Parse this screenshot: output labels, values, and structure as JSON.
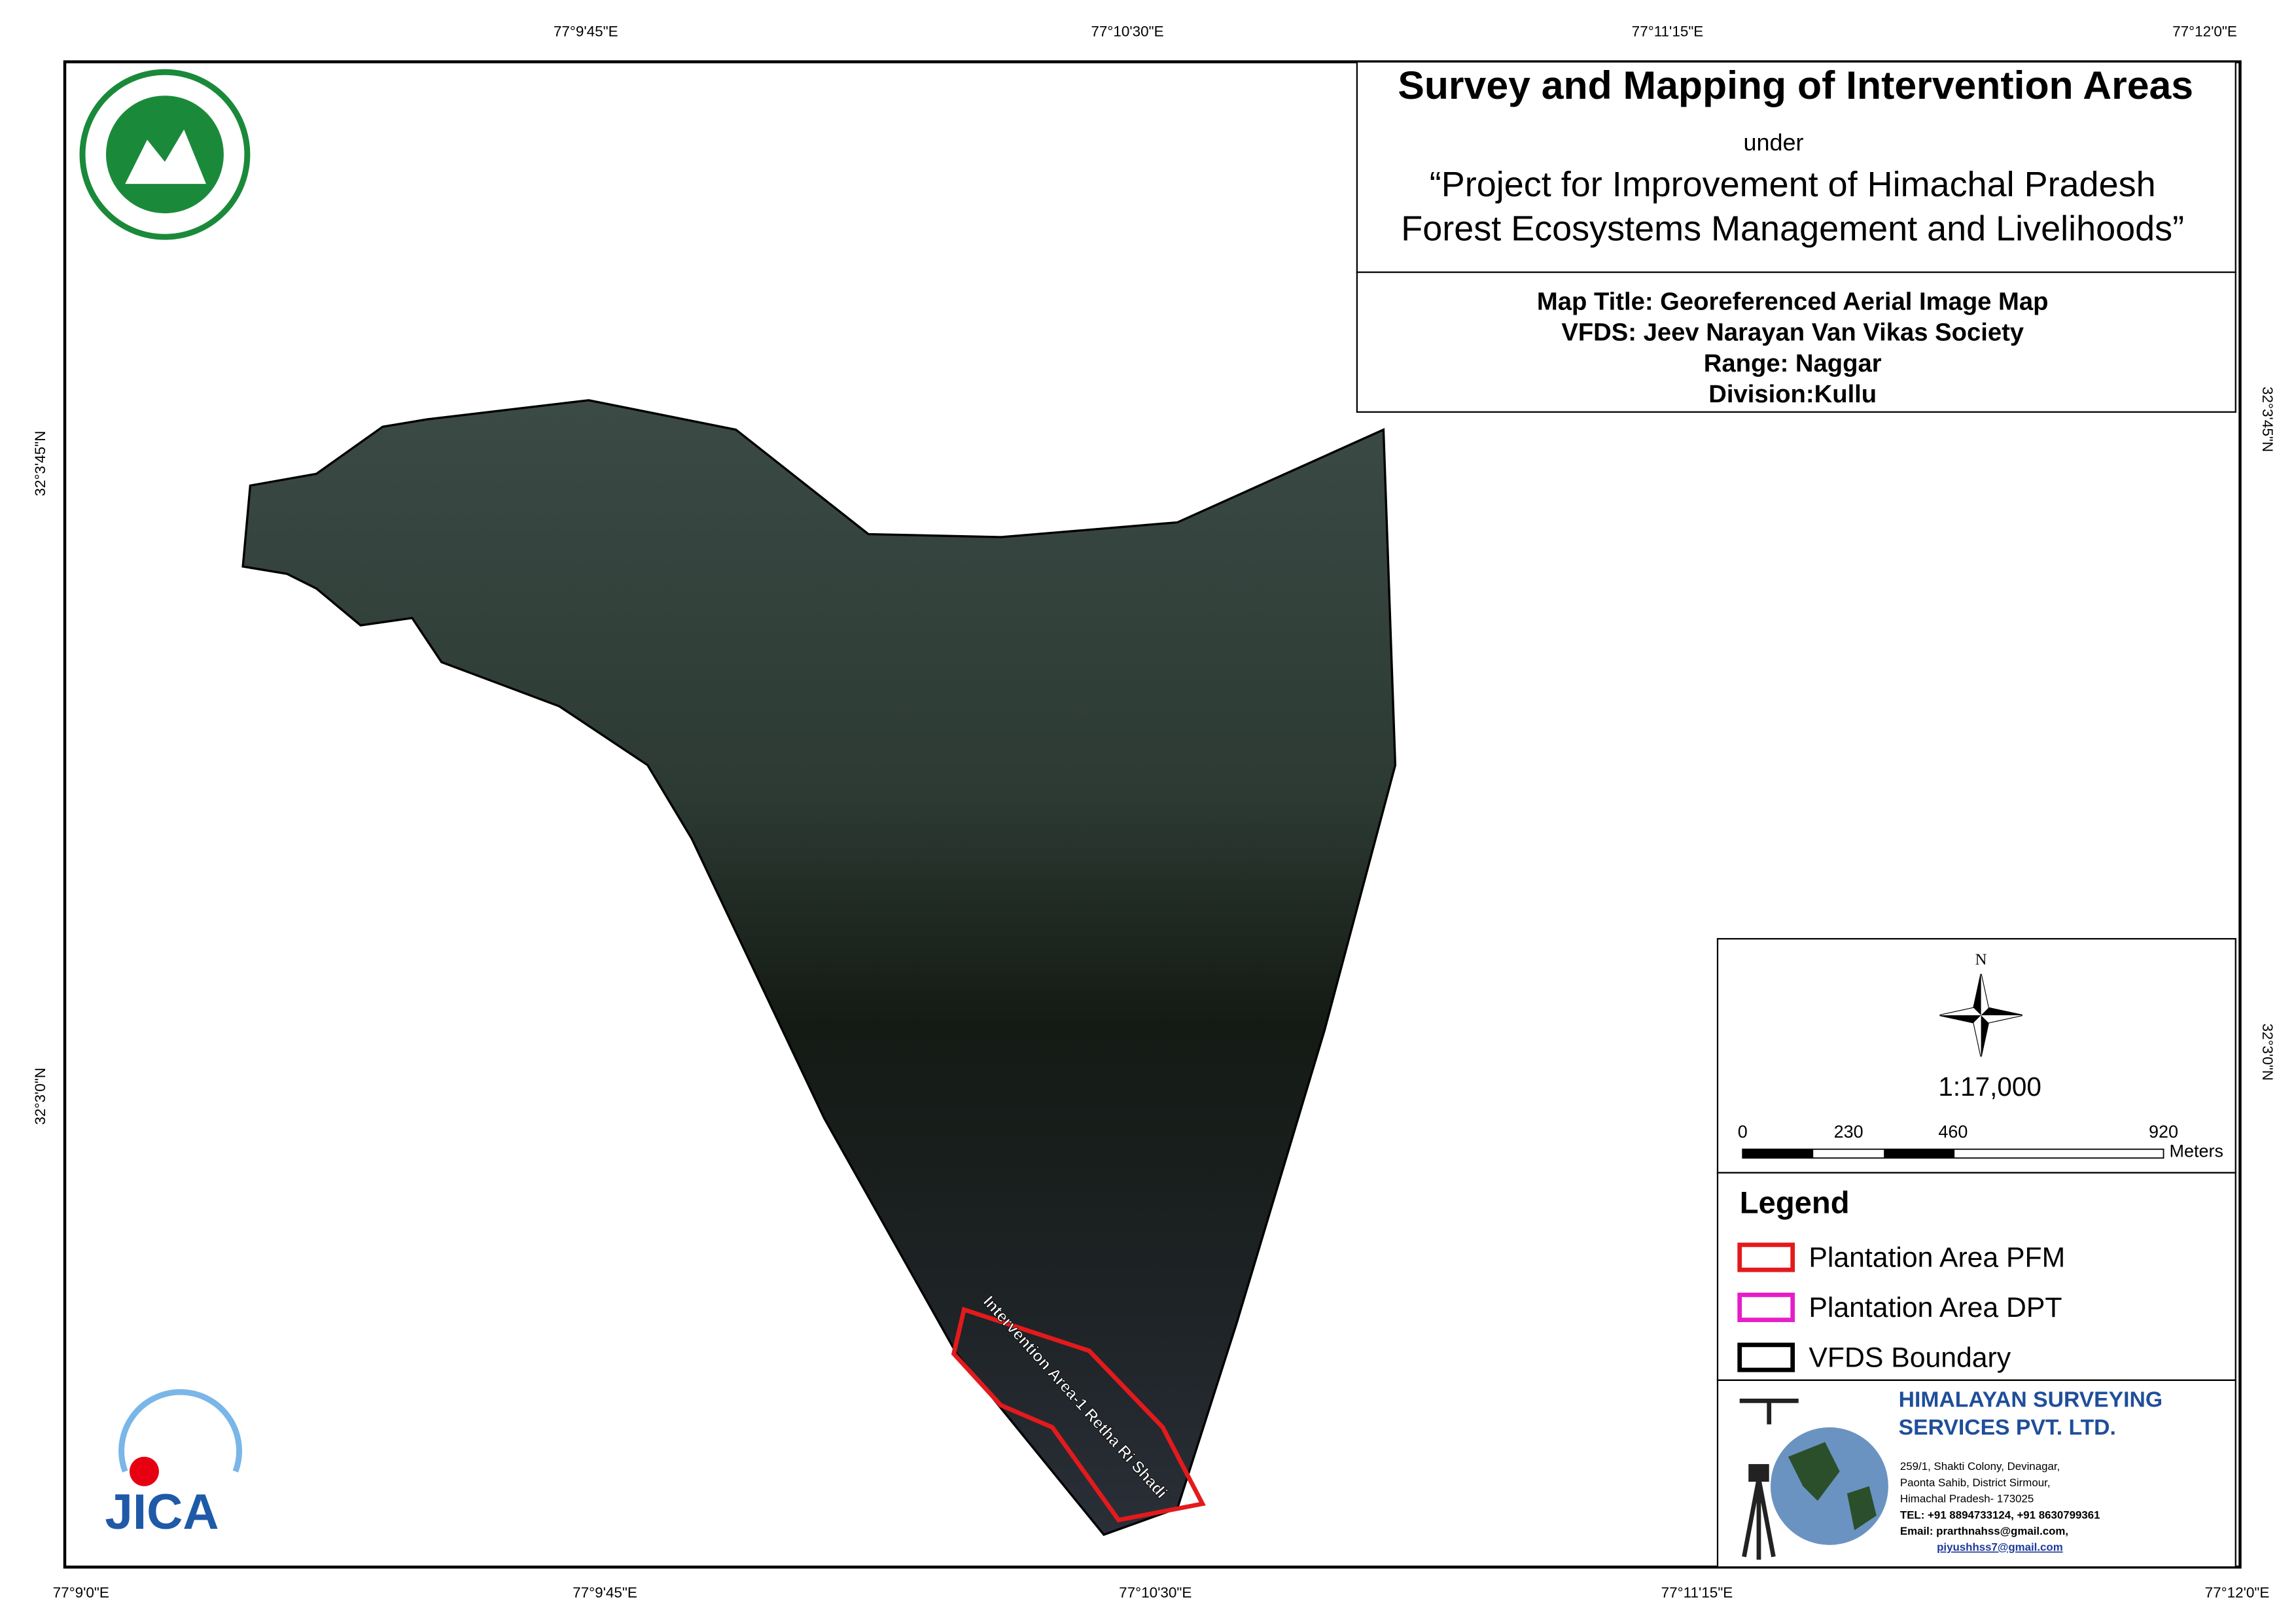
{
  "coordinates": {
    "top": [
      "77°9'45\"E",
      "77°10'30\"E",
      "77°11'15\"E",
      "77°12'0\"E"
    ],
    "bottom": [
      "77°9'0\"E",
      "77°9'45\"E",
      "77°10'30\"E",
      "77°11'15\"E",
      "77°12'0\"E"
    ],
    "left": [
      "32°3'45\"N",
      "32°3'0\"N"
    ],
    "right": [
      "32°3'45\"N",
      "32°3'0\"N"
    ]
  },
  "header": {
    "title": "Survey and Mapping of Intervention Areas",
    "under": "under",
    "project": [
      "“Project for Improvement of Himachal Pradesh",
      "Forest Ecosystems Management and Livelihoods”"
    ]
  },
  "map_info": [
    "Map Title: Georeferenced Aerial Image Map",
    "VFDS: Jeev Narayan Van Vikas Society",
    "Range: Naggar",
    "Division:Kullu"
  ],
  "north": "N",
  "scale": "1:17,000",
  "scale_bar": {
    "labels": [
      "0",
      "230",
      "460",
      "920"
    ],
    "unit": "Meters"
  },
  "legend": {
    "title": "Legend",
    "items": [
      "Plantation Area PFM",
      "Plantation Area DPT",
      "VFDS Boundary"
    ]
  },
  "annotation": "Intervention Area-1 Retha Ri Shadi",
  "logo": "JICA",
  "company": {
    "name": [
      "HIMALAYAN SURVEYING",
      "SERVICES PVT. LTD."
    ],
    "address": [
      "259/1, Shakti Colony, Devinagar,",
      "Paonta Sahib, District Sirmour,",
      "Himachal Pradesh- 173025",
      "TEL: +91 8894733124, +91 8630799361",
      "Email: prarthnahss@gmail.com,",
      "piyushhss7@gmail.com"
    ]
  }
}
